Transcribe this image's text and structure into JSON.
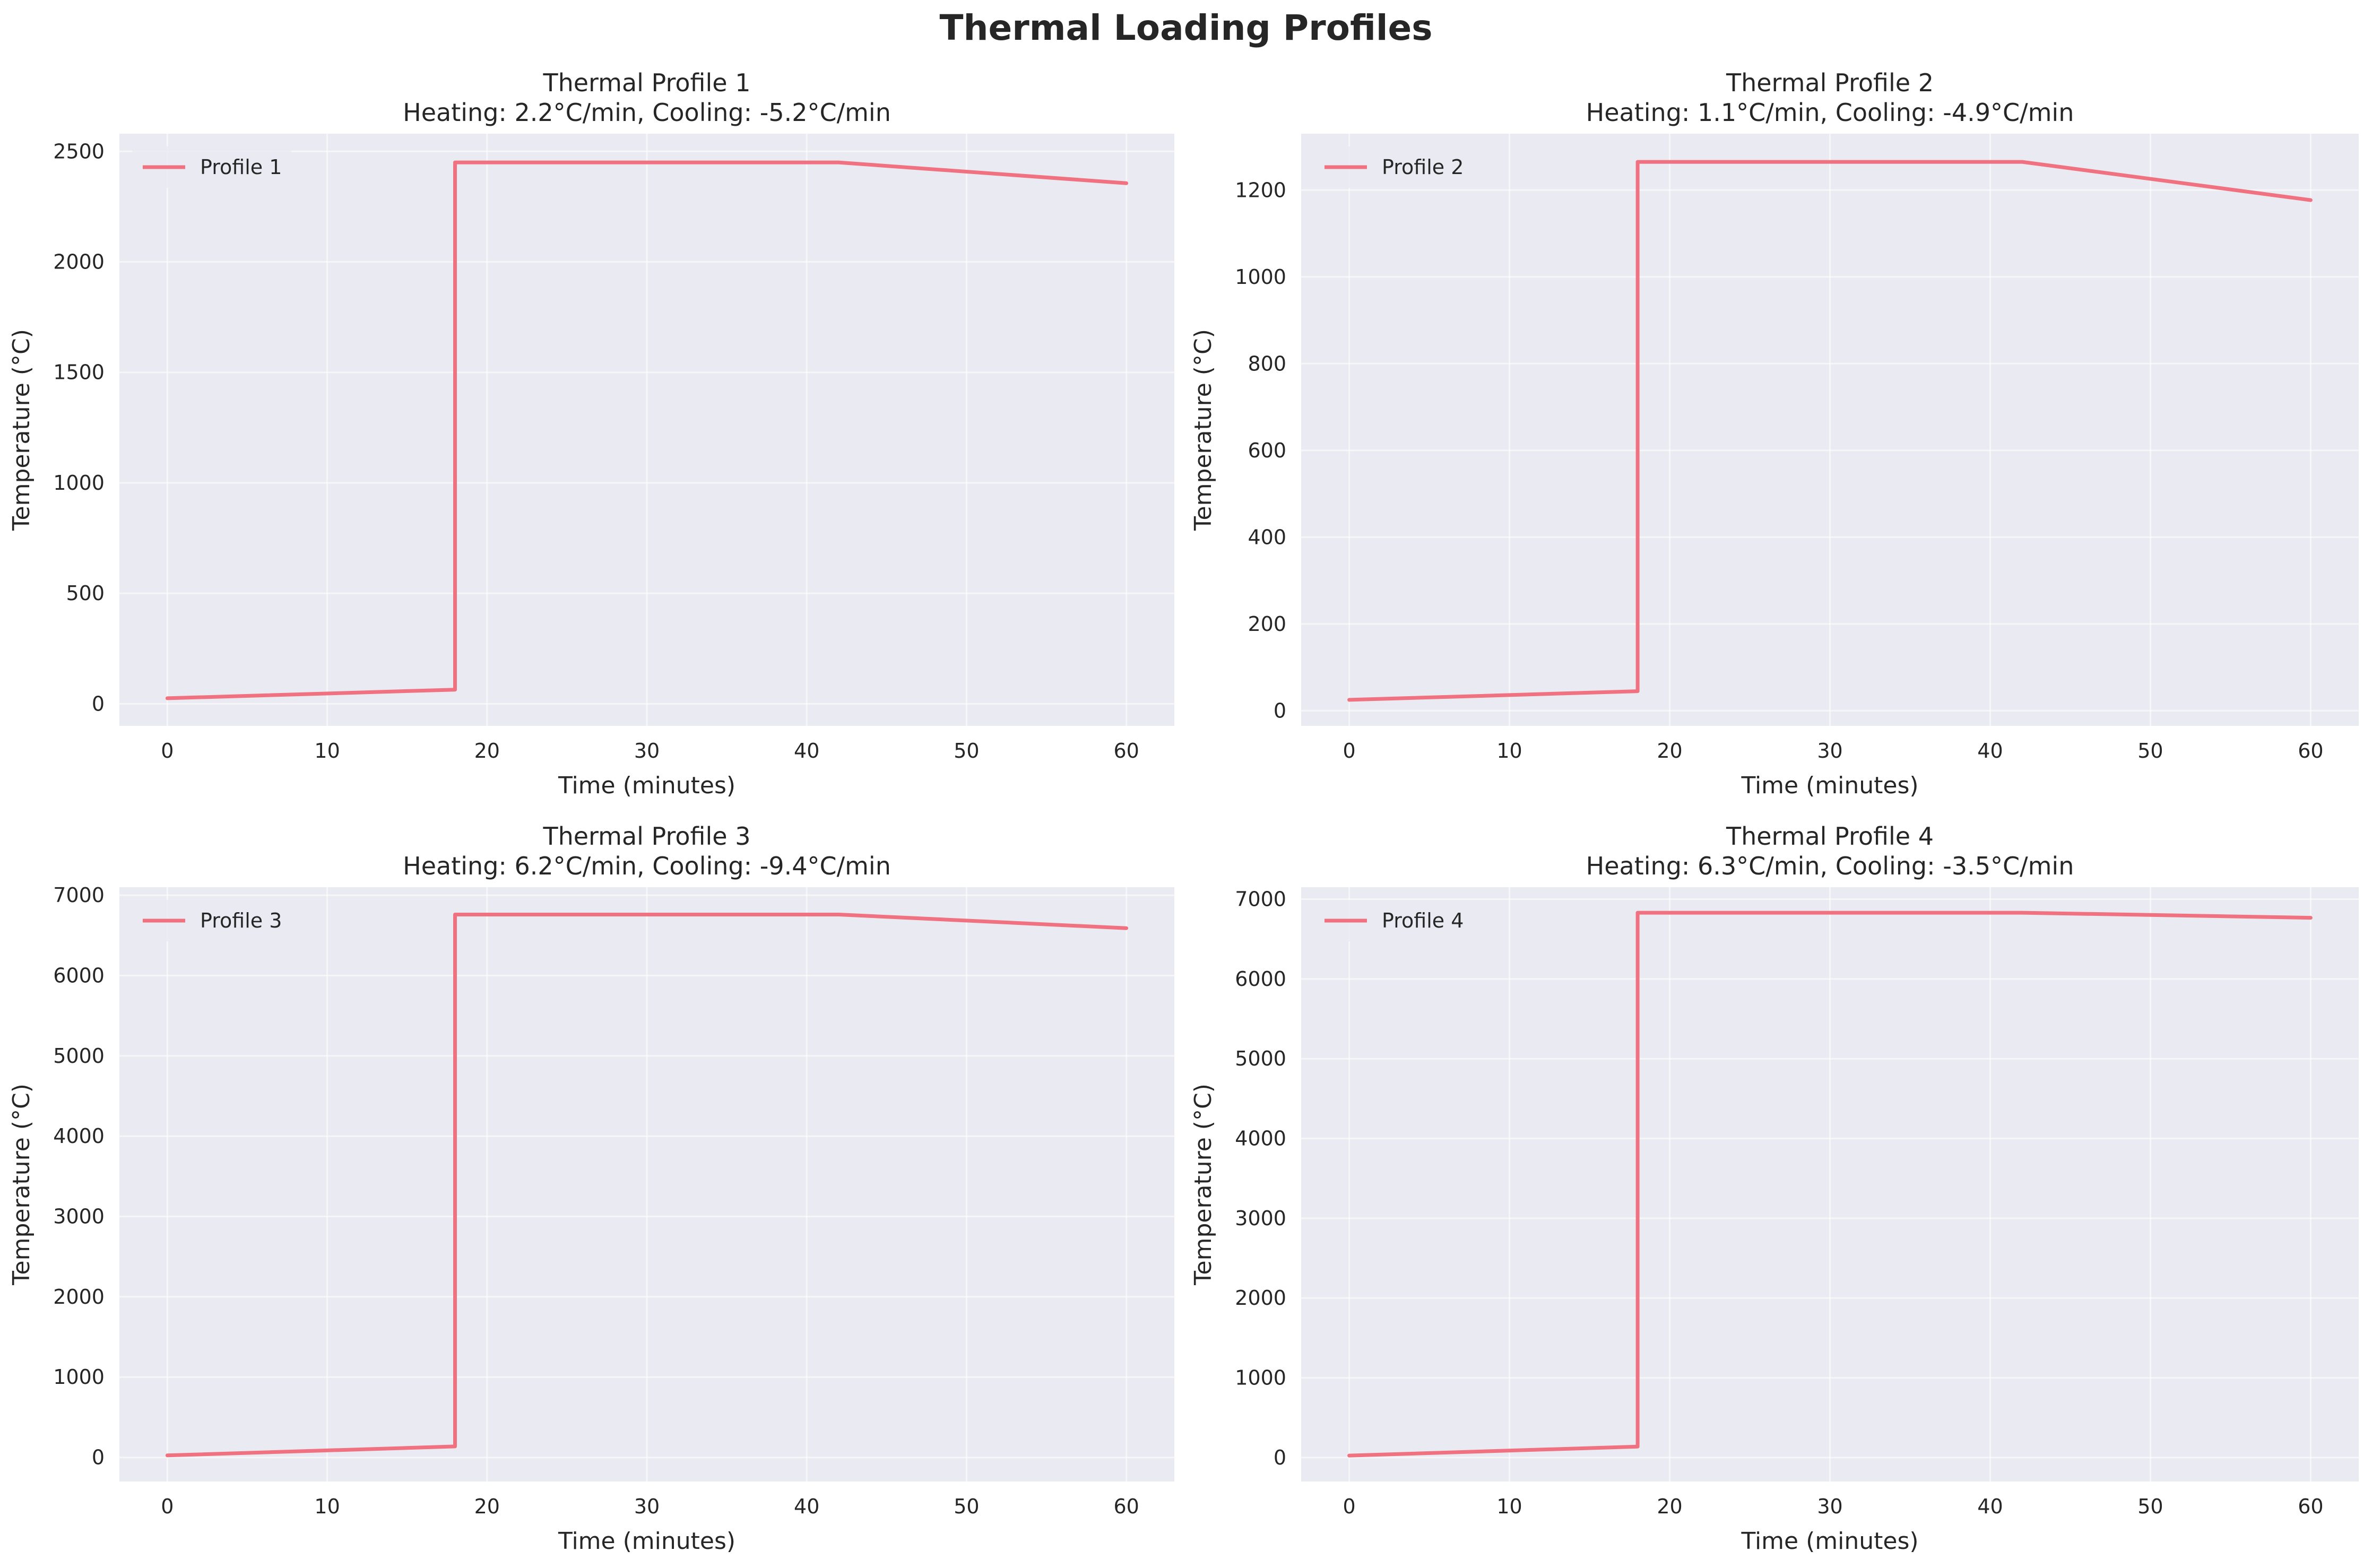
{
  "suptitle": "Thermal Loading Profiles",
  "colors": {
    "line": "#f0717f",
    "axes_background": "#eaeaf2",
    "grid": "#ffffff",
    "text": "#262626"
  },
  "chart_data": [
    {
      "type": "line",
      "title": "Thermal Profile 1\nHeating: 2.2°C/min, Cooling: -5.2°C/min",
      "xlabel": "Time (minutes)",
      "ylabel": "Temperature (°C)",
      "xlim": [
        -3,
        63
      ],
      "ylim": [
        -100,
        2580
      ],
      "xticks": [
        0,
        10,
        20,
        30,
        40,
        50,
        60
      ],
      "yticks": [
        0,
        500,
        1000,
        1500,
        2000,
        2500
      ],
      "legend_position": "upper left",
      "grid": true,
      "series": [
        {
          "name": "Profile 1",
          "x": [
            0,
            18,
            18,
            30,
            42,
            60
          ],
          "y": [
            25,
            64,
            2450,
            2450,
            2450,
            2356
          ]
        }
      ]
    },
    {
      "type": "line",
      "title": "Thermal Profile 2\nHeating: 1.1°C/min, Cooling: -4.9°C/min",
      "xlabel": "Time (minutes)",
      "ylabel": "Temperature (°C)",
      "xlim": [
        -3,
        63
      ],
      "ylim": [
        -35,
        1330
      ],
      "xticks": [
        0,
        10,
        20,
        30,
        40,
        50,
        60
      ],
      "yticks": [
        0,
        200,
        400,
        600,
        800,
        1000,
        1200
      ],
      "legend_position": "upper left",
      "grid": true,
      "series": [
        {
          "name": "Profile 2",
          "x": [
            0,
            18,
            18,
            30,
            42,
            60
          ],
          "y": [
            25,
            45,
            1265,
            1265,
            1265,
            1177
          ]
        }
      ]
    },
    {
      "type": "line",
      "title": "Thermal Profile 3\nHeating: 6.2°C/min, Cooling: -9.4°C/min",
      "xlabel": "Time (minutes)",
      "ylabel": "Temperature (°C)",
      "xlim": [
        -3,
        63
      ],
      "ylim": [
        -300,
        7100
      ],
      "xticks": [
        0,
        10,
        20,
        30,
        40,
        50,
        60
      ],
      "yticks": [
        0,
        1000,
        2000,
        3000,
        4000,
        5000,
        6000,
        7000
      ],
      "legend_position": "upper left",
      "grid": true,
      "series": [
        {
          "name": "Profile 3",
          "x": [
            0,
            18,
            18,
            30,
            42,
            60
          ],
          "y": [
            25,
            137,
            6760,
            6760,
            6760,
            6590
          ]
        }
      ]
    },
    {
      "type": "line",
      "title": "Thermal Profile 4\nHeating: 6.3°C/min, Cooling: -3.5°C/min",
      "xlabel": "Time (minutes)",
      "ylabel": "Temperature (°C)",
      "xlim": [
        -3,
        63
      ],
      "ylim": [
        -300,
        7150
      ],
      "xticks": [
        0,
        10,
        20,
        30,
        40,
        50,
        60
      ],
      "yticks": [
        0,
        1000,
        2000,
        3000,
        4000,
        5000,
        6000,
        7000
      ],
      "legend_position": "upper left",
      "grid": true,
      "series": [
        {
          "name": "Profile 4",
          "x": [
            0,
            18,
            18,
            30,
            42,
            60
          ],
          "y": [
            25,
            138,
            6830,
            6830,
            6830,
            6767
          ]
        }
      ]
    }
  ]
}
